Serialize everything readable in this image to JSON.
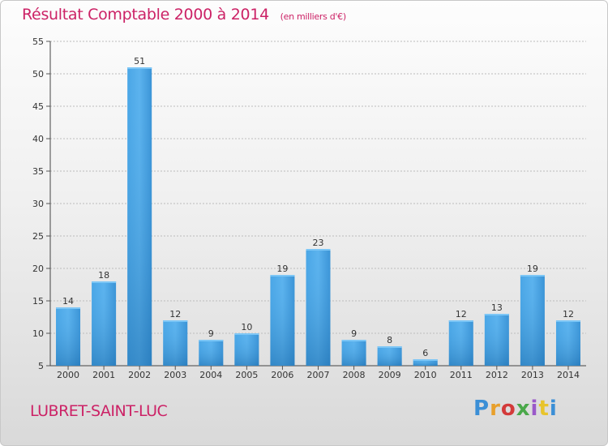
{
  "chart_data": {
    "type": "bar",
    "title": "Résultat Comptable 2000 à 2014",
    "subtitle": "(en milliers d'€)",
    "categories": [
      "2000",
      "2001",
      "2002",
      "2003",
      "2004",
      "2005",
      "2006",
      "2007",
      "2008",
      "2009",
      "2010",
      "2011",
      "2012",
      "2013",
      "2014"
    ],
    "values": [
      14,
      18,
      51,
      12,
      9,
      10,
      19,
      23,
      9,
      8,
      6,
      12,
      13,
      19,
      12
    ],
    "ylim": [
      5,
      55
    ],
    "yticks": [
      5,
      10,
      15,
      20,
      25,
      30,
      35,
      40,
      45,
      50,
      55
    ],
    "grid": true,
    "xlabel": "",
    "ylabel": "",
    "bar_color": "#3d9ee0",
    "bar_color_dark": "#2a7fc4"
  },
  "footer": {
    "commune": "LUBRET-SAINT-LUC",
    "logo_text": "Proxiti"
  },
  "colors": {
    "accent": "#cc2266"
  }
}
